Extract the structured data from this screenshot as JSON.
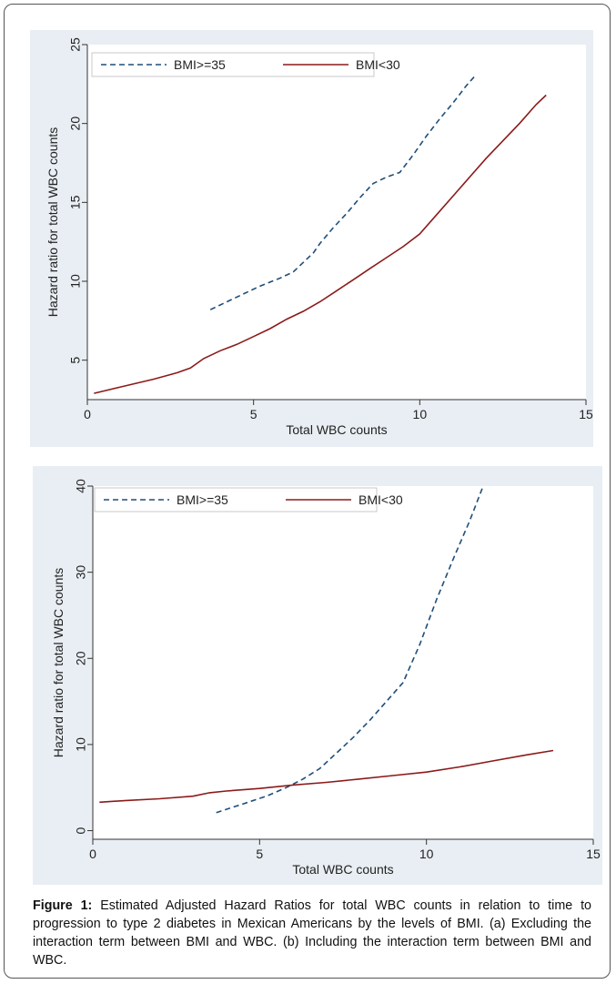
{
  "colors": {
    "dashed_series": "#1f4e79",
    "solid_series": "#8b1a1a",
    "panel_bg": "#e8eef3",
    "plot_bg": "#ffffff"
  },
  "chart_data": [
    {
      "type": "line",
      "title": "",
      "xlabel": "Total WBC counts",
      "ylabel": "Hazard ratio for total WBC counts",
      "xlim": [
        0,
        15
      ],
      "ylim": [
        2.5,
        25
      ],
      "xticks": [
        0,
        5,
        10,
        15
      ],
      "yticks": [
        5,
        10,
        15,
        20,
        25
      ],
      "legend_position": "top",
      "series": [
        {
          "name": "BMI>=35",
          "style": "dashed",
          "x": [
            3.7,
            4.5,
            5.2,
            5.8,
            6.2,
            6.6,
            6.8,
            7.0,
            7.4,
            7.8,
            8.2,
            8.6,
            9.0,
            9.4,
            9.8,
            10.2,
            10.6,
            11.0,
            11.4,
            11.7
          ],
          "y": [
            8.2,
            9.0,
            9.7,
            10.2,
            10.6,
            11.4,
            11.8,
            12.4,
            13.4,
            14.3,
            15.3,
            16.2,
            16.6,
            16.9,
            18.0,
            19.2,
            20.3,
            21.3,
            22.4,
            23.1
          ]
        },
        {
          "name": "BMI<30",
          "style": "solid",
          "x": [
            0.2,
            1.0,
            2.0,
            2.7,
            3.1,
            3.5,
            4.0,
            4.5,
            5.0,
            5.5,
            6.0,
            6.5,
            7.0,
            7.5,
            8.0,
            8.5,
            9.0,
            9.5,
            10.0,
            10.5,
            11.0,
            11.5,
            12.0,
            12.5,
            13.0,
            13.5,
            13.8
          ],
          "y": [
            2.9,
            3.3,
            3.8,
            4.2,
            4.5,
            5.1,
            5.6,
            6.0,
            6.5,
            7.0,
            7.6,
            8.1,
            8.7,
            9.4,
            10.1,
            10.8,
            11.5,
            12.2,
            13.0,
            14.2,
            15.4,
            16.6,
            17.8,
            18.9,
            20.0,
            21.2,
            21.8
          ]
        }
      ]
    },
    {
      "type": "line",
      "title": "",
      "xlabel": "Total WBC counts",
      "ylabel": "Hazard ratio for total WBC counts",
      "xlim": [
        0,
        15
      ],
      "ylim": [
        -1,
        40
      ],
      "xticks": [
        0,
        5,
        10,
        15
      ],
      "yticks": [
        0,
        10,
        20,
        30,
        40
      ],
      "legend_position": "top",
      "series": [
        {
          "name": "BMI>=35",
          "style": "dashed",
          "x": [
            3.7,
            4.5,
            5.2,
            5.8,
            6.3,
            6.8,
            7.3,
            7.8,
            8.3,
            8.8,
            9.3,
            9.8,
            10.3,
            10.8,
            11.3,
            11.7
          ],
          "y": [
            2.1,
            3.1,
            4.0,
            5.0,
            6.0,
            7.2,
            9.0,
            10.8,
            12.8,
            15.0,
            17.2,
            21.6,
            26.8,
            31.5,
            36.0,
            40.0
          ]
        },
        {
          "name": "BMI<30",
          "style": "solid",
          "x": [
            0.2,
            1.0,
            2.0,
            3.0,
            3.5,
            4.0,
            5.0,
            6.0,
            7.0,
            8.0,
            9.0,
            10.0,
            11.0,
            12.0,
            13.0,
            13.8
          ],
          "y": [
            3.3,
            3.5,
            3.7,
            4.0,
            4.4,
            4.6,
            4.9,
            5.3,
            5.6,
            6.0,
            6.4,
            6.8,
            7.4,
            8.1,
            8.8,
            9.3
          ]
        }
      ]
    }
  ],
  "caption": {
    "label": "Figure 1:",
    "text": " Estimated Adjusted Hazard Ratios for total WBC counts in relation to time to progression to type 2 diabetes in Mexican Americans by the levels of BMI. (a) Excluding the interaction term between BMI and WBC. (b) Including the interaction term between BMI and WBC."
  }
}
